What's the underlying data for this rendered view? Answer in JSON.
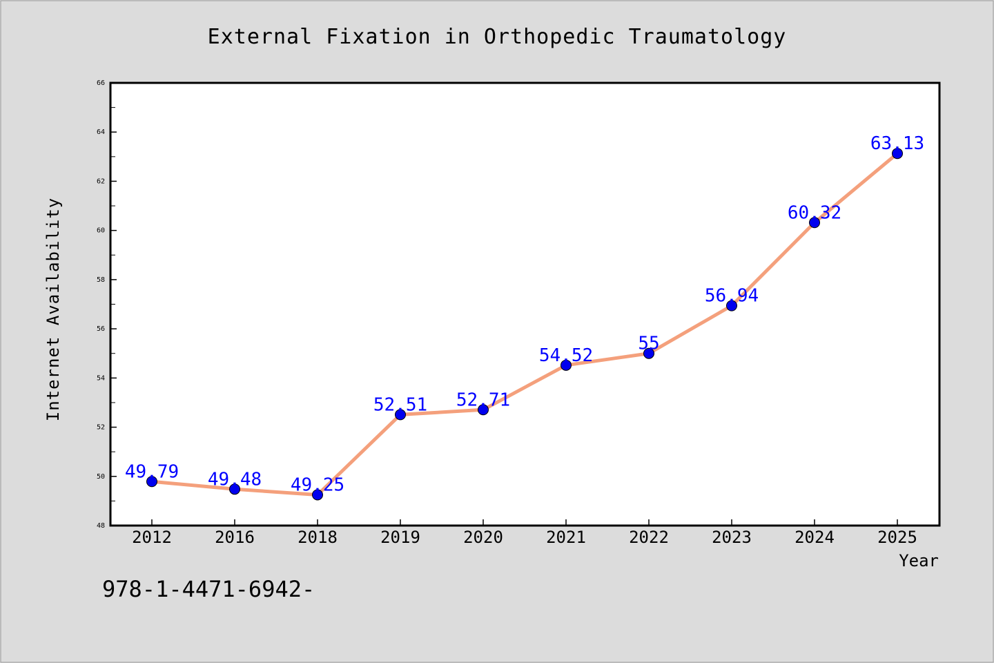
{
  "footer_text": "978-1-4471-6942-",
  "colors": {
    "background": "#dcdcdc",
    "plot_bg": "#ffffff",
    "line": "#f4a07c",
    "marker": "#0000ee",
    "label": "#0000ff",
    "text": "#000000"
  },
  "chart_data": {
    "type": "line",
    "title": "External Fixation in Orthopedic Traumatology",
    "xlabel": "Year",
    "ylabel": "Internet Availability",
    "categories": [
      "2012",
      "2016",
      "2018",
      "2019",
      "2020",
      "2021",
      "2022",
      "2023",
      "2024",
      "2025"
    ],
    "values": [
      49.79,
      49.48,
      49.25,
      52.51,
      52.71,
      54.52,
      55,
      56.94,
      60.32,
      63.13
    ],
    "data_labels": [
      "49.79",
      "49.48",
      "49.25",
      "52.51",
      "52.71",
      "54.52",
      "55",
      "56.94",
      "60.32",
      "63.13"
    ],
    "ylim": [
      48,
      66
    ],
    "yticks": [
      48,
      50,
      52,
      54,
      56,
      58,
      60,
      62,
      64,
      66
    ],
    "grid": false,
    "legend": "none"
  }
}
